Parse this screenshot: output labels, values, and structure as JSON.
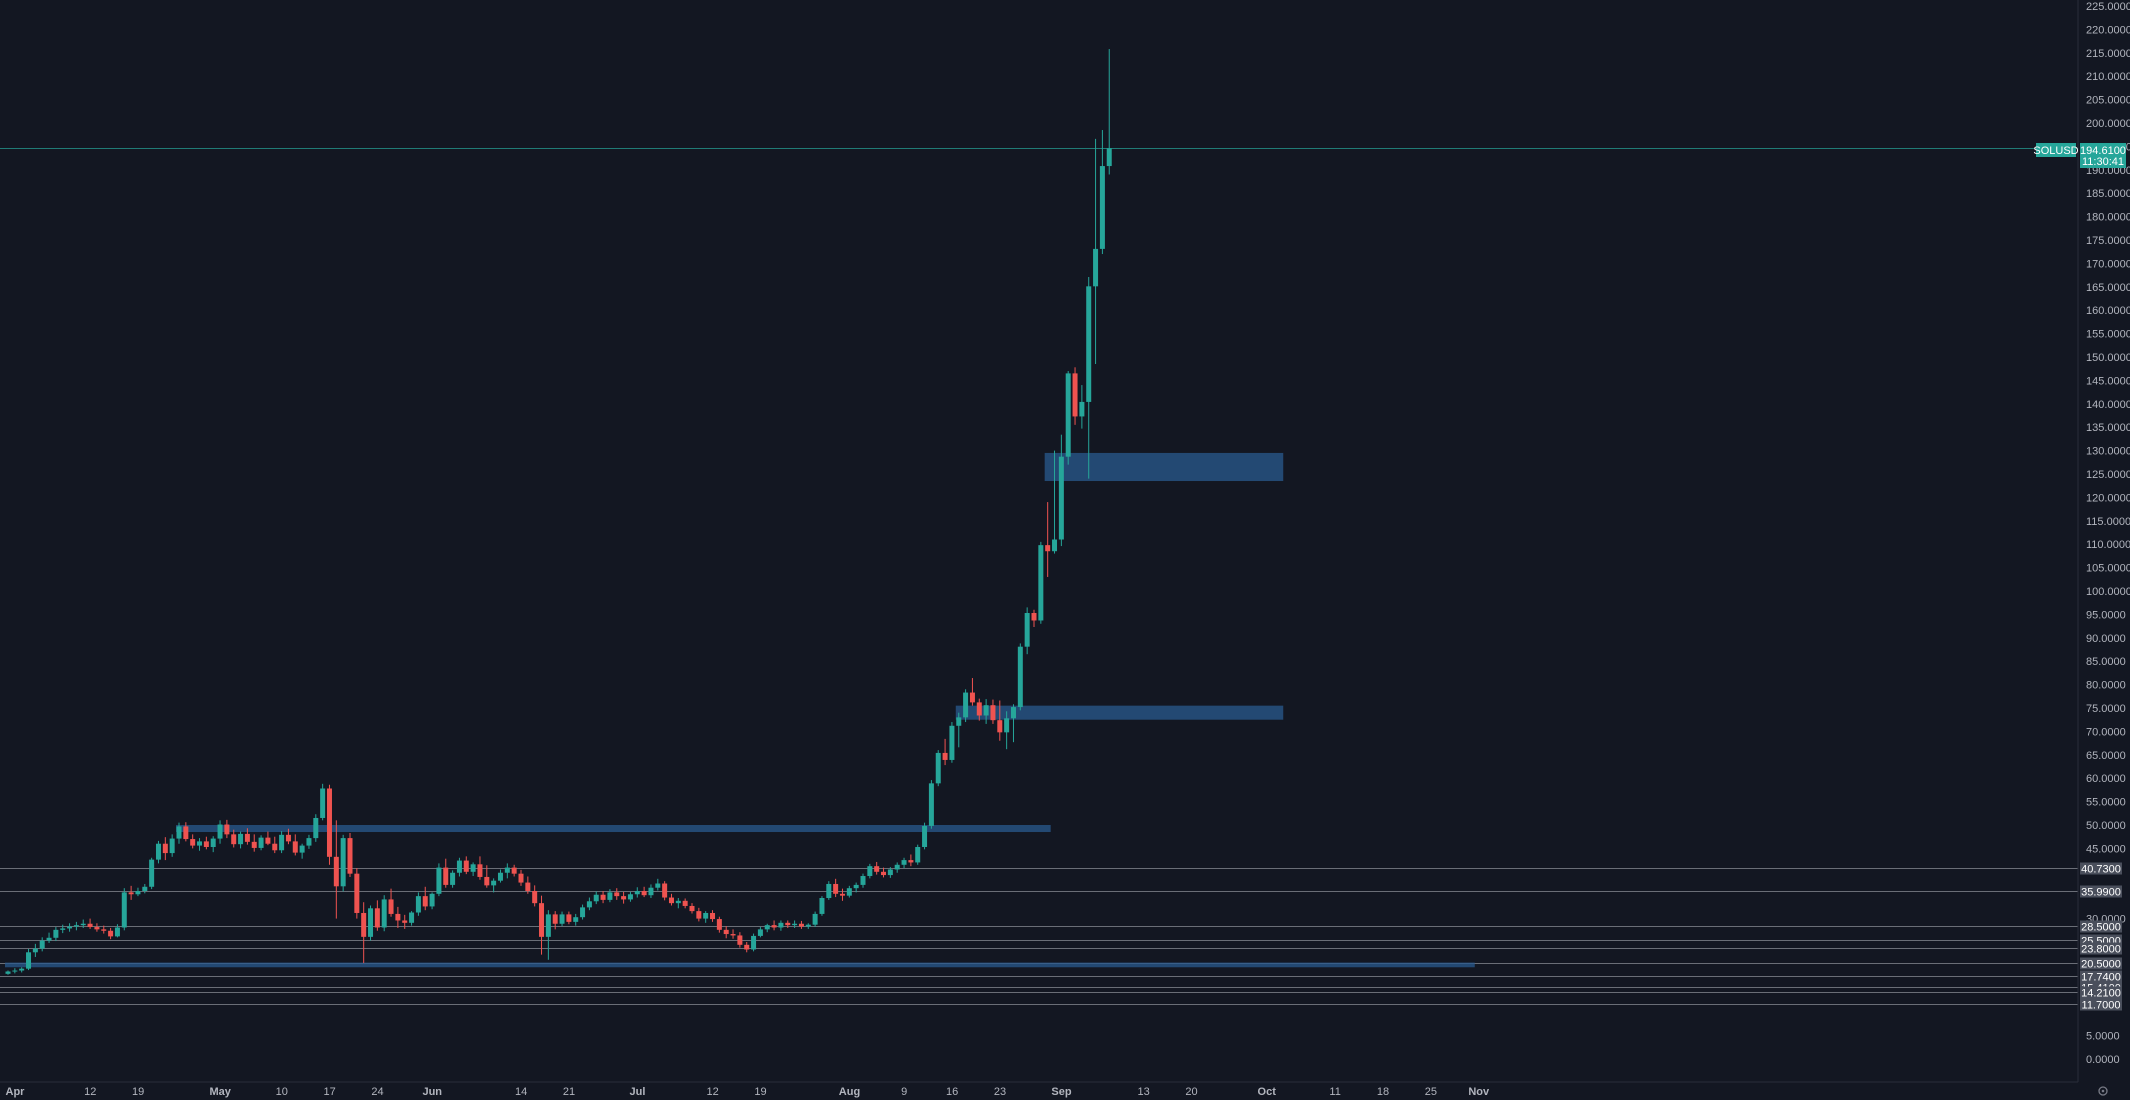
{
  "chart_data": {
    "type": "candlestick",
    "symbol": "SOLUSD",
    "last_price": "194.6100",
    "countdown": "11:30:41",
    "colors": {
      "background": "#131722",
      "up": "#26a69a",
      "down": "#ef5350",
      "zone": "#2a5b8f",
      "grid_line": "#b2b5be",
      "badge": "#26a69a",
      "level_badge": "#4a4f5c"
    },
    "y_axis": {
      "min": 0,
      "max": 225,
      "ticks": [
        "225.0000",
        "220.0000",
        "215.0000",
        "210.0000",
        "205.0000",
        "200.0000",
        "195.0000",
        "190.0000",
        "185.0000",
        "180.0000",
        "175.0000",
        "170.0000",
        "165.0000",
        "160.0000",
        "155.0000",
        "150.0000",
        "145.0000",
        "140.0000",
        "135.0000",
        "130.0000",
        "125.0000",
        "120.0000",
        "115.0000",
        "110.0000",
        "105.0000",
        "100.0000",
        "95.0000",
        "90.0000",
        "85.0000",
        "80.0000",
        "75.0000",
        "70.0000",
        "65.0000",
        "60.0000",
        "55.0000",
        "50.0000",
        "45.0000",
        "30.0000",
        "5.0000",
        "0.0000"
      ]
    },
    "x_axis": {
      "ticks": [
        {
          "label": "Apr",
          "day": 0,
          "strong": true
        },
        {
          "label": "12",
          "day": 11
        },
        {
          "label": "19",
          "day": 18
        },
        {
          "label": "May",
          "day": 30,
          "strong": true
        },
        {
          "label": "10",
          "day": 39
        },
        {
          "label": "17",
          "day": 46
        },
        {
          "label": "24",
          "day": 53
        },
        {
          "label": "Jun",
          "day": 61,
          "strong": true
        },
        {
          "label": "14",
          "day": 74
        },
        {
          "label": "21",
          "day": 81
        },
        {
          "label": "Jul",
          "day": 91,
          "strong": true
        },
        {
          "label": "12",
          "day": 102
        },
        {
          "label": "19",
          "day": 109
        },
        {
          "label": "Aug",
          "day": 122,
          "strong": true
        },
        {
          "label": "9",
          "day": 130
        },
        {
          "label": "16",
          "day": 137
        },
        {
          "label": "23",
          "day": 144
        },
        {
          "label": "Sep",
          "day": 153,
          "strong": true
        },
        {
          "label": "13",
          "day": 165
        },
        {
          "label": "20",
          "day": 172
        },
        {
          "label": "Oct",
          "day": 183,
          "strong": true
        },
        {
          "label": "11",
          "day": 193
        },
        {
          "label": "18",
          "day": 200
        },
        {
          "label": "25",
          "day": 207
        },
        {
          "label": "Nov",
          "day": 214,
          "strong": true
        }
      ]
    },
    "levels": [
      "40.7300",
      "35.9900",
      "28.5000",
      "25.5000",
      "23.8000",
      "20.5000",
      "17.7400",
      "15.4100",
      "14.2100",
      "11.7000"
    ],
    "zones": [
      {
        "from_day": 25,
        "to_day": 152,
        "low": 48.5,
        "high": 50
      },
      {
        "from_day": 152,
        "to_day": 186,
        "low": 123.5,
        "high": 129.5
      },
      {
        "from_day": 139,
        "to_day": 186,
        "low": 72.5,
        "high": 75.5
      },
      {
        "from_day": 0,
        "to_day": 214,
        "low": 19.6,
        "high": 20.6
      }
    ],
    "candles": [
      [
        18.2,
        18.9,
        18.0,
        18.7
      ],
      [
        18.7,
        19.4,
        18.3,
        18.9
      ],
      [
        18.9,
        19.6,
        18.5,
        19.3
      ],
      [
        19.3,
        23.5,
        19.0,
        22.8
      ],
      [
        22.8,
        24.6,
        21.8,
        23.6
      ],
      [
        23.6,
        26.0,
        23.0,
        25.3
      ],
      [
        25.3,
        27.0,
        24.8,
        25.9
      ],
      [
        25.9,
        28.2,
        25.2,
        27.6
      ],
      [
        27.6,
        28.7,
        26.9,
        27.9
      ],
      [
        27.9,
        29.0,
        27.2,
        28.3
      ],
      [
        28.3,
        29.3,
        27.5,
        28.6
      ],
      [
        28.6,
        29.8,
        28.0,
        28.9
      ],
      [
        28.9,
        30.0,
        27.8,
        28.2
      ],
      [
        28.2,
        29.0,
        27.2,
        27.7
      ],
      [
        27.7,
        28.5,
        26.8,
        27.4
      ],
      [
        27.4,
        28.0,
        25.6,
        26.2
      ],
      [
        26.2,
        28.8,
        26.0,
        28.1
      ],
      [
        28.1,
        36.5,
        27.5,
        35.6
      ],
      [
        35.6,
        37.0,
        34.0,
        35.2
      ],
      [
        35.2,
        36.6,
        34.8,
        35.9
      ],
      [
        35.9,
        37.4,
        35.4,
        36.8
      ],
      [
        36.8,
        43.0,
        36.3,
        42.6
      ],
      [
        42.6,
        46.6,
        41.8,
        46.0
      ],
      [
        46.0,
        47.4,
        42.5,
        44.0
      ],
      [
        44.0,
        48.0,
        43.2,
        47.1
      ],
      [
        47.1,
        50.5,
        46.0,
        49.7
      ],
      [
        49.7,
        50.6,
        46.5,
        47.0
      ],
      [
        47.0,
        48.0,
        45.0,
        45.6
      ],
      [
        45.6,
        47.2,
        44.5,
        46.5
      ],
      [
        46.5,
        47.5,
        44.8,
        45.3
      ],
      [
        45.3,
        47.6,
        44.2,
        47.1
      ],
      [
        47.1,
        51.0,
        46.0,
        50.1
      ],
      [
        50.1,
        51.1,
        47.2,
        48.0
      ],
      [
        48.0,
        49.0,
        45.2,
        45.9
      ],
      [
        45.9,
        48.6,
        45.0,
        48.1
      ],
      [
        48.1,
        49.3,
        45.8,
        46.4
      ],
      [
        46.4,
        48.0,
        44.3,
        45.1
      ],
      [
        45.1,
        47.8,
        44.6,
        47.3
      ],
      [
        47.3,
        48.6,
        45.7,
        46.0
      ],
      [
        46.0,
        47.5,
        44.0,
        44.6
      ],
      [
        44.6,
        48.7,
        44.0,
        47.9
      ],
      [
        47.9,
        49.2,
        45.9,
        46.5
      ],
      [
        46.5,
        48.0,
        43.5,
        44.1
      ],
      [
        44.1,
        46.0,
        42.8,
        45.6
      ],
      [
        45.6,
        47.9,
        44.9,
        47.2
      ],
      [
        47.2,
        52.3,
        46.4,
        51.5
      ],
      [
        51.5,
        58.8,
        51.0,
        57.8
      ],
      [
        57.8,
        58.6,
        41.5,
        43.2
      ],
      [
        43.2,
        51.0,
        30.0,
        36.9
      ],
      [
        36.9,
        47.9,
        35.8,
        47.2
      ],
      [
        47.2,
        48.3,
        38.9,
        39.6
      ],
      [
        39.6,
        40.8,
        30.0,
        31.2
      ],
      [
        31.2,
        33.5,
        20.5,
        26.1
      ],
      [
        26.1,
        32.8,
        25.3,
        32.2
      ],
      [
        32.2,
        33.9,
        27.4,
        28.1
      ],
      [
        28.1,
        35.0,
        27.3,
        34.1
      ],
      [
        34.1,
        36.4,
        30.4,
        31.0
      ],
      [
        31.0,
        32.5,
        28.0,
        29.6
      ],
      [
        29.6,
        30.8,
        27.8,
        29.1
      ],
      [
        29.1,
        31.6,
        28.5,
        31.3
      ],
      [
        31.3,
        35.6,
        30.6,
        34.8
      ],
      [
        34.8,
        36.8,
        31.8,
        32.6
      ],
      [
        32.6,
        35.6,
        32.0,
        35.3
      ],
      [
        35.3,
        41.8,
        34.8,
        40.9
      ],
      [
        40.9,
        42.8,
        36.6,
        37.2
      ],
      [
        37.2,
        40.3,
        36.6,
        39.8
      ],
      [
        39.8,
        43.0,
        39.0,
        42.4
      ],
      [
        42.4,
        43.3,
        39.5,
        40.0
      ],
      [
        40.0,
        42.0,
        39.1,
        41.6
      ],
      [
        41.6,
        43.3,
        38.3,
        38.9
      ],
      [
        38.9,
        41.4,
        36.6,
        37.1
      ],
      [
        37.1,
        38.6,
        35.6,
        38.1
      ],
      [
        38.1,
        40.5,
        37.7,
        39.8
      ],
      [
        39.8,
        41.8,
        38.6,
        40.9
      ],
      [
        40.9,
        41.5,
        39.0,
        39.6
      ],
      [
        39.6,
        40.4,
        37.0,
        37.7
      ],
      [
        37.7,
        39.0,
        35.3,
        35.9
      ],
      [
        35.9,
        37.1,
        32.6,
        33.3
      ],
      [
        33.3,
        34.9,
        22.3,
        26.1
      ],
      [
        26.1,
        31.8,
        21.2,
        30.9
      ],
      [
        30.9,
        31.6,
        27.7,
        28.9
      ],
      [
        28.9,
        31.5,
        28.4,
        30.9
      ],
      [
        30.9,
        31.5,
        28.8,
        29.3
      ],
      [
        29.3,
        31.0,
        28.5,
        30.3
      ],
      [
        30.3,
        33.0,
        29.8,
        32.4
      ],
      [
        32.4,
        34.5,
        31.8,
        33.7
      ],
      [
        33.7,
        35.8,
        33.1,
        35.1
      ],
      [
        35.1,
        35.9,
        33.3,
        34.0
      ],
      [
        34.0,
        36.3,
        33.5,
        35.6
      ],
      [
        35.6,
        36.5,
        34.0,
        34.8
      ],
      [
        34.8,
        35.7,
        33.2,
        34.1
      ],
      [
        34.1,
        35.7,
        33.6,
        35.2
      ],
      [
        35.2,
        36.7,
        34.5,
        35.9
      ],
      [
        35.9,
        36.8,
        34.6,
        35.0
      ],
      [
        35.0,
        37.3,
        34.4,
        36.6
      ],
      [
        36.6,
        38.5,
        36.0,
        37.5
      ],
      [
        37.5,
        38.0,
        33.9,
        34.5
      ],
      [
        34.5,
        35.3,
        32.8,
        33.3
      ],
      [
        33.3,
        34.4,
        32.2,
        33.8
      ],
      [
        33.8,
        34.3,
        32.2,
        32.7
      ],
      [
        32.7,
        33.3,
        31.1,
        31.6
      ],
      [
        31.6,
        32.3,
        29.4,
        30.0
      ],
      [
        30.0,
        31.6,
        29.1,
        31.2
      ],
      [
        31.2,
        31.8,
        29.3,
        29.9
      ],
      [
        29.9,
        30.4,
        27.0,
        27.6
      ],
      [
        27.6,
        28.4,
        25.8,
        26.7
      ],
      [
        26.7,
        27.7,
        25.7,
        26.4
      ],
      [
        26.4,
        27.1,
        23.8,
        24.4
      ],
      [
        24.4,
        25.0,
        22.8,
        23.4
      ],
      [
        23.4,
        26.8,
        23.0,
        26.3
      ],
      [
        26.3,
        28.2,
        26.0,
        27.7
      ],
      [
        27.7,
        28.9,
        27.1,
        28.6
      ],
      [
        28.6,
        29.6,
        27.5,
        28.1
      ],
      [
        28.1,
        29.6,
        27.4,
        29.1
      ],
      [
        29.1,
        29.6,
        28.0,
        28.6
      ],
      [
        28.6,
        29.6,
        28.0,
        28.9
      ],
      [
        28.9,
        29.5,
        27.8,
        28.3
      ],
      [
        28.3,
        29.0,
        27.8,
        28.7
      ],
      [
        28.7,
        31.5,
        28.2,
        31.0
      ],
      [
        31.0,
        34.8,
        30.6,
        34.4
      ],
      [
        34.4,
        38.0,
        34.0,
        37.4
      ],
      [
        37.4,
        38.5,
        34.6,
        35.3
      ],
      [
        35.3,
        36.4,
        33.8,
        34.9
      ],
      [
        34.9,
        37.0,
        34.5,
        36.5
      ],
      [
        36.5,
        37.7,
        35.6,
        37.2
      ],
      [
        37.2,
        39.6,
        36.6,
        39.1
      ],
      [
        39.1,
        41.7,
        38.6,
        41.2
      ],
      [
        41.2,
        42.1,
        39.4,
        40.0
      ],
      [
        40.0,
        40.9,
        38.8,
        39.3
      ],
      [
        39.3,
        41.0,
        38.7,
        40.5
      ],
      [
        40.5,
        42.0,
        39.8,
        41.5
      ],
      [
        41.5,
        43.0,
        40.8,
        42.5
      ],
      [
        42.5,
        43.7,
        41.2,
        42.0
      ],
      [
        42.0,
        45.8,
        41.5,
        45.3
      ],
      [
        45.3,
        50.5,
        44.8,
        49.8
      ],
      [
        49.8,
        59.6,
        49.2,
        58.9
      ],
      [
        58.9,
        66.0,
        58.3,
        65.4
      ],
      [
        65.4,
        68.4,
        62.8,
        63.9
      ],
      [
        63.9,
        72.0,
        63.3,
        71.2
      ],
      [
        71.2,
        74.0,
        66.6,
        73.0
      ],
      [
        73.0,
        79.0,
        72.0,
        78.3
      ],
      [
        78.3,
        81.4,
        75.5,
        76.2
      ],
      [
        76.2,
        77.0,
        72.3,
        73.4
      ],
      [
        73.4,
        76.9,
        71.6,
        75.6
      ],
      [
        75.6,
        76.8,
        71.6,
        72.4
      ],
      [
        72.4,
        76.6,
        68.0,
        69.8
      ],
      [
        69.8,
        74.3,
        66.2,
        72.8
      ],
      [
        72.8,
        75.8,
        67.7,
        75.2
      ],
      [
        75.2,
        88.8,
        74.5,
        88.1
      ],
      [
        88.1,
        96.5,
        86.5,
        95.3
      ],
      [
        95.3,
        96.0,
        92.3,
        93.7
      ],
      [
        93.7,
        110.5,
        93.0,
        109.8
      ],
      [
        109.8,
        119.0,
        103.0,
        108.5
      ],
      [
        108.5,
        130.0,
        108.0,
        111.0
      ],
      [
        111.0,
        133.4,
        109.6,
        128.7
      ],
      [
        128.7,
        147.0,
        127.0,
        146.5
      ],
      [
        146.5,
        147.8,
        135.5,
        137.3
      ],
      [
        137.3,
        144.0,
        134.7,
        140.4
      ],
      [
        140.4,
        167.1,
        124.0,
        165.1
      ],
      [
        165.1,
        196.6,
        148.5,
        173.1
      ],
      [
        173.1,
        198.5,
        172.0,
        190.8
      ],
      [
        190.8,
        215.8,
        189.0,
        194.6
      ]
    ]
  }
}
